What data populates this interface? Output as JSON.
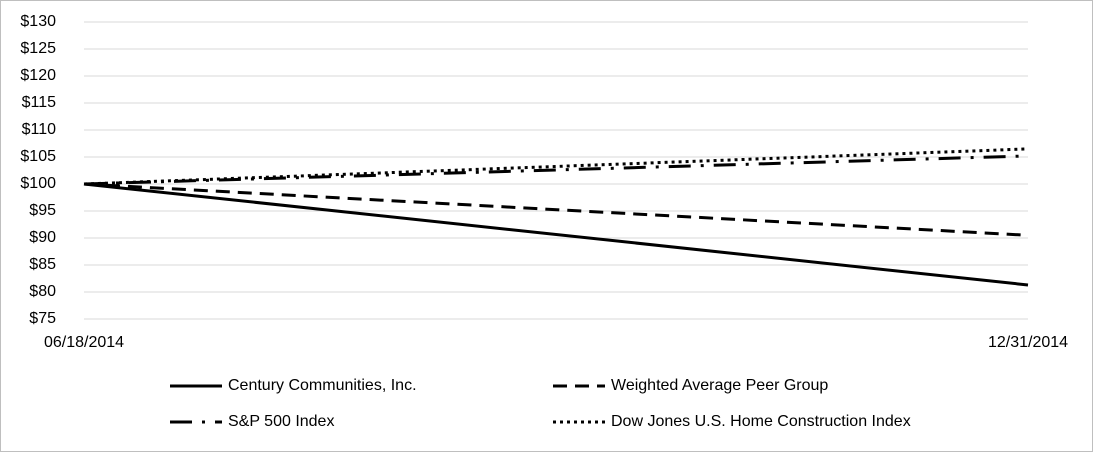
{
  "chart_data": {
    "type": "line",
    "x": [
      "06/18/2014",
      "12/31/2014"
    ],
    "series": [
      {
        "name": "Century Communities, Inc.",
        "color": "#000000",
        "style": "solid",
        "values": [
          100,
          81.3
        ]
      },
      {
        "name": "Weighted Average Peer Group",
        "color": "#000000",
        "style": "dashed",
        "values": [
          100,
          90.5
        ]
      },
      {
        "name": "S&P 500 Index",
        "color": "#000000",
        "style": "dashdot",
        "values": [
          100,
          105.2
        ]
      },
      {
        "name": "Dow Jones U.S. Home Construction Index",
        "color": "#000000",
        "style": "dotted",
        "values": [
          100,
          106.5
        ]
      }
    ],
    "ylim": [
      75,
      130
    ],
    "yticks": [
      {
        "value": 75,
        "label": "$75"
      },
      {
        "value": 80,
        "label": "$80"
      },
      {
        "value": 85,
        "label": "$85"
      },
      {
        "value": 90,
        "label": "$90"
      },
      {
        "value": 95,
        "label": "$95"
      },
      {
        "value": 100,
        "label": "$100"
      },
      {
        "value": 105,
        "label": "$105"
      },
      {
        "value": 110,
        "label": "$110"
      },
      {
        "value": 115,
        "label": "$115"
      },
      {
        "value": 120,
        "label": "$120"
      },
      {
        "value": 125,
        "label": "$125"
      },
      {
        "value": 130,
        "label": "$130"
      }
    ],
    "grid": true
  }
}
